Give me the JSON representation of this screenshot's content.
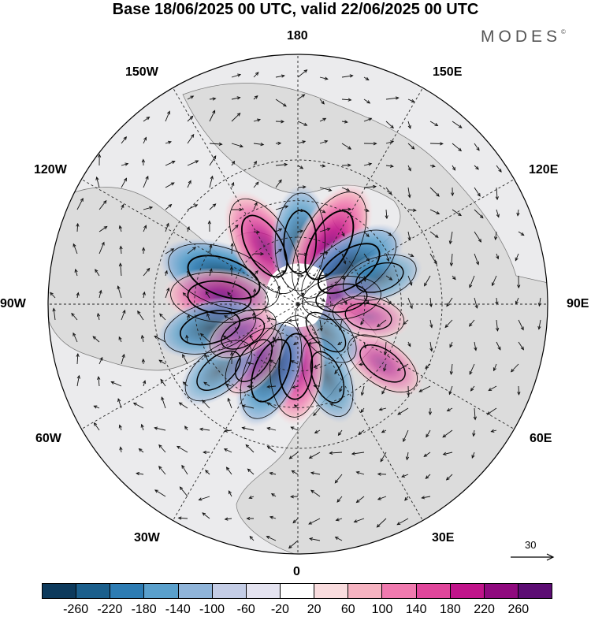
{
  "title": "Base 18/06/2025 00 UTC, valid 22/06/2025 00 UTC",
  "logo": {
    "text": "MODES",
    "mark": "©"
  },
  "longitude_labels": {
    "lon_180": "180",
    "lon_150e": "150E",
    "lon_120e": "120E",
    "lon_90e": "90E",
    "lon_60e": "60E",
    "lon_30e": "30E",
    "lon_0": "0",
    "lon_30w": "30W",
    "lon_60w": "60W",
    "lon_90w": "90W",
    "lon_120w": "120W",
    "lon_150w": "150W"
  },
  "vector_reference": {
    "value": "30"
  },
  "colorbar": {
    "colors": [
      "#0d3a5c",
      "#1b5f8c",
      "#2d7cb3",
      "#5aa0cc",
      "#8fb4d9",
      "#c4cde6",
      "#e4e3f0",
      "#ffffff",
      "#f9dcde",
      "#f6b3c1",
      "#f07aaf",
      "#e0469b",
      "#c0148a",
      "#8f0a7e",
      "#5c0d73"
    ],
    "tick_labels": [
      "-260",
      "-220",
      "-180",
      "-140",
      "-100",
      "-60",
      "-20",
      "20",
      "60",
      "100",
      "140",
      "180",
      "220",
      "260"
    ]
  },
  "anomaly_centres": [
    {
      "sign": "negative",
      "strength": 0.85,
      "lon": -110,
      "lat": 55
    },
    {
      "sign": "positive",
      "strength": 0.6,
      "lon": -95,
      "lat": 55
    },
    {
      "sign": "negative",
      "strength": 0.55,
      "lon": -75,
      "lat": 50
    },
    {
      "sign": "positive",
      "strength": 0.7,
      "lon": -150,
      "lat": 60
    },
    {
      "sign": "negative",
      "strength": 0.6,
      "lon": 178,
      "lat": 62
    },
    {
      "sign": "positive",
      "strength": 0.85,
      "lon": 152,
      "lat": 60
    },
    {
      "sign": "negative",
      "strength": 0.75,
      "lon": 125,
      "lat": 62
    },
    {
      "sign": "positive",
      "strength": 0.35,
      "lon": 98,
      "lat": 70
    },
    {
      "sign": "negative",
      "strength": 0.3,
      "lon": 108,
      "lat": 52
    },
    {
      "sign": "positive",
      "strength": 0.25,
      "lon": 80,
      "lat": 58
    },
    {
      "sign": "positive",
      "strength": 0.35,
      "lon": 55,
      "lat": 45
    },
    {
      "sign": "negative",
      "strength": 0.4,
      "lon": 22,
      "lat": 55
    },
    {
      "sign": "negative",
      "strength": 0.3,
      "lon": 45,
      "lat": 72
    },
    {
      "sign": "positive",
      "strength": 0.65,
      "lon": -2,
      "lat": 62
    },
    {
      "sign": "negative",
      "strength": 0.65,
      "lon": -22,
      "lat": 58
    },
    {
      "sign": "positive",
      "strength": 0.3,
      "lon": -38,
      "lat": 58
    },
    {
      "sign": "negative",
      "strength": 0.35,
      "lon": -50,
      "lat": 45
    },
    {
      "sign": "positive",
      "strength": 0.25,
      "lon": -62,
      "lat": 62
    }
  ]
}
